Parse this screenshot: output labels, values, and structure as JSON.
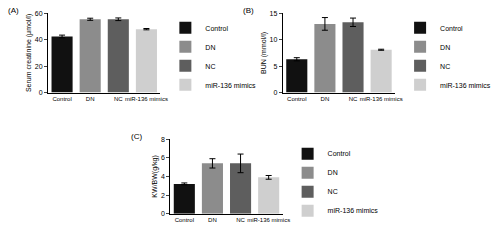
{
  "chart_data": [
    {
      "type": "bar",
      "title": "(A)",
      "y_label": "Serum creatinine (μmol/l)",
      "categories": [
        "Control",
        "DN",
        "NC",
        "miR-136 mimics"
      ],
      "values": [
        42.5,
        55.5,
        55.5,
        48
      ],
      "errors": [
        1,
        0.8,
        1,
        0.5
      ],
      "colors": [
        "#111111",
        "#8c8c8c",
        "#5e5e5e",
        "#cfcfcf"
      ],
      "ylim": [
        0,
        60
      ],
      "yticks": [
        0,
        20,
        40,
        60
      ],
      "legend": "right"
    },
    {
      "type": "bar",
      "title": "(B)",
      "y_label": "BUN (mmol/l)",
      "categories": [
        "Control",
        "DN",
        "NC",
        "miR-136 mimics"
      ],
      "values": [
        6.3,
        13.0,
        13.3,
        8.1
      ],
      "errors": [
        0.3,
        1.2,
        0.8,
        0.1
      ],
      "colors": [
        "#111111",
        "#8c8c8c",
        "#5e5e5e",
        "#cfcfcf"
      ],
      "ylim": [
        0,
        15
      ],
      "yticks": [
        0,
        5,
        10,
        15
      ],
      "legend": "right"
    },
    {
      "type": "bar",
      "title": "(C)",
      "y_label": "KW/BW(g/kg)",
      "categories": [
        "Control",
        "DN",
        "NC",
        "miR-136 mimics"
      ],
      "values": [
        3.2,
        5.4,
        5.4,
        3.9
      ],
      "errors": [
        0.1,
        0.5,
        1.0,
        0.2
      ],
      "colors": [
        "#111111",
        "#8c8c8c",
        "#5e5e5e",
        "#cfcfcf"
      ],
      "ylim": [
        0,
        8
      ],
      "yticks": [
        0,
        2,
        4,
        6,
        8
      ],
      "legend": "right"
    }
  ]
}
